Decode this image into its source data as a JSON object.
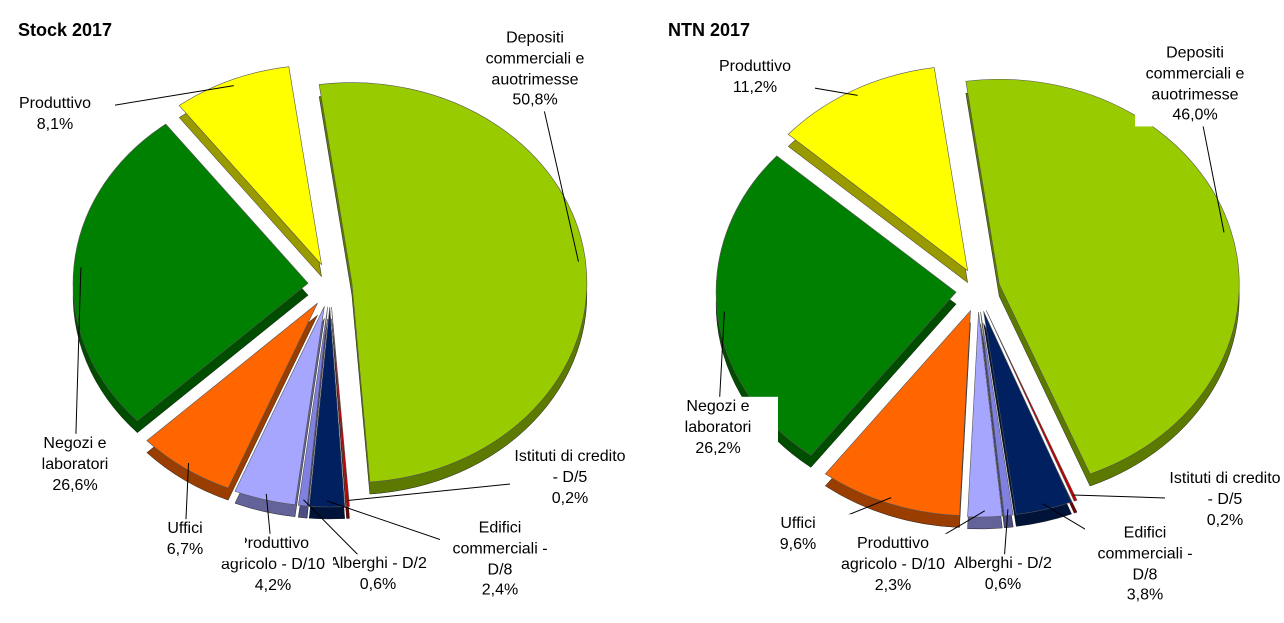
{
  "chart_data": [
    {
      "type": "pie",
      "title": "Stock 2017",
      "categories": [
        "Depositi commerciali e auotrimesse",
        "Istituti di credito - D/5",
        "Edifici commerciali - D/8",
        "Alberghi - D/2",
        "Produttivo agricolo - D/10",
        "Uffici",
        "Negozi e laboratori",
        "Produttivo"
      ],
      "values": [
        50.8,
        0.2,
        2.4,
        0.6,
        4.2,
        6.7,
        26.6,
        8.1
      ],
      "value_labels": [
        "50,8%",
        "0,2%",
        "2,4%",
        "0,6%",
        "4,2%",
        "6,7%",
        "26,6%",
        "8,1%"
      ],
      "colors": [
        "#99cc00",
        "#c00000",
        "#002060",
        "#8080e0",
        "#a6a6ff",
        "#ff6600",
        "#008000",
        "#ffff00"
      ]
    },
    {
      "type": "pie",
      "title": "NTN 2017",
      "categories": [
        "Depositi commerciali e auotrimesse",
        "Istituti di credito - D/5",
        "Edifici commerciali - D/8",
        "Alberghi - D/2",
        "Produttivo agricolo - D/10",
        "Uffici",
        "Negozi e laboratori",
        "Produttivo"
      ],
      "values": [
        46.0,
        0.2,
        3.8,
        0.6,
        2.3,
        9.6,
        26.2,
        11.2
      ],
      "value_labels": [
        "46,0%",
        "0,2%",
        "3,8%",
        "0,6%",
        "2,3%",
        "9,6%",
        "26,2%",
        "11,2%"
      ],
      "colors": [
        "#99cc00",
        "#c00000",
        "#002060",
        "#8080e0",
        "#a6a6ff",
        "#ff6600",
        "#008000",
        "#ffff00"
      ]
    }
  ]
}
